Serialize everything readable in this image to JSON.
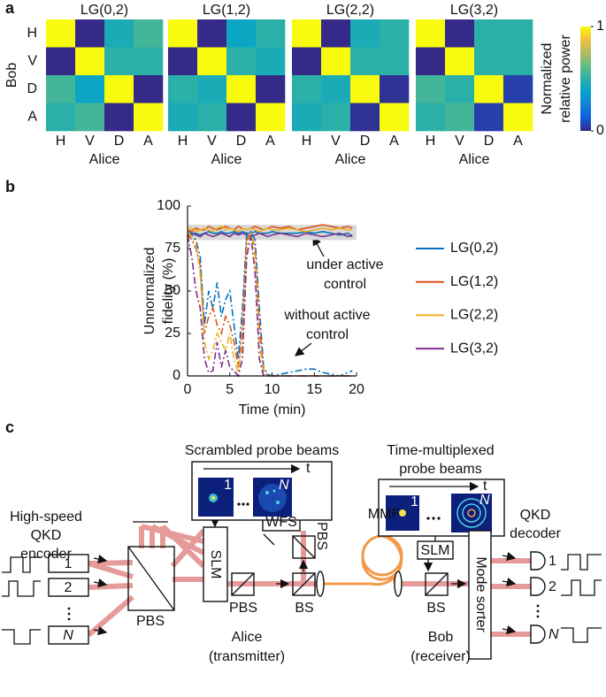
{
  "panel_labels": [
    "a",
    "b",
    "c"
  ],
  "chart_data": [
    {
      "type": "heatmap",
      "title": "LG(0,2)",
      "x_categories": [
        "H",
        "V",
        "D",
        "A"
      ],
      "y_categories": [
        "H",
        "V",
        "D",
        "A"
      ],
      "x_label": "Alice",
      "y_label": "Bob",
      "colormap": "parula",
      "zlim": [
        0,
        1
      ],
      "values": [
        [
          1,
          0,
          0.45,
          0.55
        ],
        [
          0,
          1,
          0.5,
          0.5
        ],
        [
          0.55,
          0.4,
          1,
          0
        ],
        [
          0.5,
          0.55,
          0,
          1
        ]
      ]
    },
    {
      "type": "heatmap",
      "title": "LG(1,2)",
      "x_categories": [
        "H",
        "V",
        "D",
        "A"
      ],
      "x_label": "Alice",
      "colormap": "parula",
      "zlim": [
        0,
        1
      ],
      "values": [
        [
          1,
          0,
          0.4,
          0.5
        ],
        [
          0,
          1,
          0.5,
          0.45
        ],
        [
          0.5,
          0.45,
          1,
          0
        ],
        [
          0.45,
          0.5,
          0,
          1
        ]
      ]
    },
    {
      "type": "heatmap",
      "title": "LG(2,2)",
      "x_categories": [
        "H",
        "V",
        "D",
        "A"
      ],
      "x_label": "Alice",
      "colormap": "parula",
      "zlim": [
        0,
        1
      ],
      "values": [
        [
          1,
          0,
          0.45,
          0.5
        ],
        [
          0,
          1,
          0.5,
          0.5
        ],
        [
          0.5,
          0.45,
          1,
          0.02
        ],
        [
          0.45,
          0.5,
          0.02,
          1
        ]
      ]
    },
    {
      "type": "heatmap",
      "title": "LG(3,2)",
      "x_categories": [
        "H",
        "V",
        "D",
        "A"
      ],
      "x_label": "Alice",
      "colormap": "parula",
      "zlim": [
        0,
        1
      ],
      "values": [
        [
          1,
          0,
          0.5,
          0.5
        ],
        [
          0,
          1,
          0.5,
          0.5
        ],
        [
          0.55,
          0.5,
          1,
          0.05
        ],
        [
          0.5,
          0.55,
          0.05,
          1
        ]
      ],
      "colorbar": {
        "label": [
          "Normalized",
          "relative power"
        ],
        "lim": [
          0,
          1
        ],
        "ticks": [
          0,
          1
        ]
      }
    },
    {
      "type": "line",
      "x_label": "Time (min)",
      "y_label": [
        "Unnormalized",
        "fidelity (%)"
      ],
      "xlim": [
        0,
        20
      ],
      "ylim": [
        0,
        100
      ],
      "xticks": [
        0,
        5,
        10,
        15,
        20
      ],
      "yticks": [
        0,
        25,
        50,
        75,
        100
      ],
      "grid": false,
      "legend": "outside right",
      "shaded_band": [
        80,
        89
      ],
      "shaded_color": "#d9d9d9",
      "x": [
        0,
        0.5,
        1,
        1.5,
        2,
        2.5,
        3,
        3.5,
        4,
        4.5,
        5,
        5.5,
        6,
        6.5,
        7,
        7.5,
        8,
        8.5,
        9,
        9.5,
        10,
        11,
        12,
        13,
        14,
        15,
        16,
        17,
        18,
        19,
        19.5
      ],
      "series": [
        {
          "name": "LG(0,2)",
          "color": "#0072bd",
          "style": "solid",
          "values": [
            85,
            84,
            84,
            83,
            84,
            85,
            84,
            84,
            85,
            84,
            84,
            85,
            84,
            85,
            84,
            84,
            85,
            84,
            84,
            84,
            85,
            84,
            84,
            84,
            85,
            84,
            85,
            84,
            83,
            84,
            82
          ]
        },
        {
          "name": "LG(1,2)",
          "color": "#d95319",
          "style": "solid",
          "values": [
            86,
            85,
            87,
            86,
            86,
            88,
            87,
            86,
            87,
            88,
            87,
            86,
            88,
            87,
            86,
            87,
            88,
            87,
            86,
            87,
            88,
            87,
            88,
            86,
            87,
            88,
            89,
            88,
            87,
            88,
            87
          ]
        },
        {
          "name": "LG(2,2)",
          "color": "#edb120",
          "style": "solid",
          "values": [
            86,
            87,
            85,
            86,
            87,
            86,
            85,
            87,
            88,
            86,
            87,
            86,
            85,
            87,
            86,
            87,
            86,
            85,
            86,
            87,
            86,
            86,
            87,
            86,
            85,
            86,
            87,
            86,
            87,
            86,
            86
          ]
        },
        {
          "name": "LG(3,2)",
          "color": "#7e2f8e",
          "style": "solid",
          "values": [
            82,
            84,
            83,
            82,
            84,
            83,
            82,
            83,
            84,
            83,
            82,
            84,
            83,
            84,
            83,
            82,
            83,
            84,
            83,
            82,
            83,
            84,
            83,
            82,
            84,
            83,
            82,
            83,
            84,
            82,
            83
          ]
        },
        {
          "color": "#0072bd",
          "style": "dashdot",
          "values": [
            85,
            83,
            80,
            70,
            30,
            50,
            40,
            55,
            35,
            45,
            50,
            30,
            10,
            40,
            84,
            85,
            80,
            40,
            5,
            1,
            0,
            1,
            2,
            3,
            4,
            4,
            2,
            1,
            0,
            2,
            3
          ]
        },
        {
          "color": "#d95319",
          "style": "dashdot",
          "values": [
            84,
            80,
            75,
            65,
            25,
            35,
            40,
            30,
            25,
            35,
            30,
            20,
            5,
            30,
            80,
            84,
            75,
            30,
            3,
            0,
            0,
            0,
            0,
            0,
            0,
            0,
            0,
            0,
            0,
            0,
            0
          ]
        },
        {
          "color": "#edb120",
          "style": "dashdot",
          "values": [
            85,
            82,
            78,
            60,
            20,
            10,
            15,
            25,
            20,
            15,
            25,
            10,
            2,
            20,
            75,
            85,
            70,
            20,
            1,
            0,
            0,
            0,
            0,
            0,
            0,
            0,
            0,
            0,
            0,
            0,
            0
          ]
        },
        {
          "color": "#7e2f8e",
          "style": "dashdot",
          "values": [
            83,
            70,
            50,
            40,
            10,
            2,
            3,
            20,
            5,
            15,
            5,
            3,
            0,
            10,
            70,
            83,
            60,
            10,
            0,
            0,
            0,
            0,
            0,
            0,
            0,
            0,
            0,
            0,
            0,
            0,
            0
          ]
        }
      ],
      "annotations": [
        {
          "text": [
            "under active",
            "control"
          ]
        },
        {
          "text": [
            "without active",
            "control"
          ]
        }
      ]
    }
  ],
  "diagram": {
    "scrambled_title": "Scrambled probe beams",
    "scrambled_t": "t",
    "scrambled_first": "1",
    "scrambled_last": "N",
    "multiplexed_title": [
      "Time-multiplexed",
      "probe beams"
    ],
    "multiplexed_t": "t",
    "multiplexed_first": "1",
    "multiplexed_last": "N",
    "encoder_title": [
      "High-speed",
      "QKD",
      "encoder"
    ],
    "encoder_channels": [
      "1",
      "2",
      "N"
    ],
    "components": {
      "pbs_main": "PBS",
      "slm_alice": "SLM",
      "pbs_alice": "PBS",
      "bs_alice": "BS",
      "wfs": "WFS",
      "pbs_wfs": "PBS",
      "mmf": "MMF",
      "slm_bob": "SLM",
      "bs_bob": "BS",
      "mode_sorter": "Mode sorter"
    },
    "decoder_title": [
      "QKD",
      "decoder"
    ],
    "decoder_channels": [
      "1",
      "2",
      "N"
    ],
    "alice": [
      "Alice",
      "(transmitter)"
    ],
    "bob": [
      "Bob",
      "(receiver)"
    ]
  }
}
